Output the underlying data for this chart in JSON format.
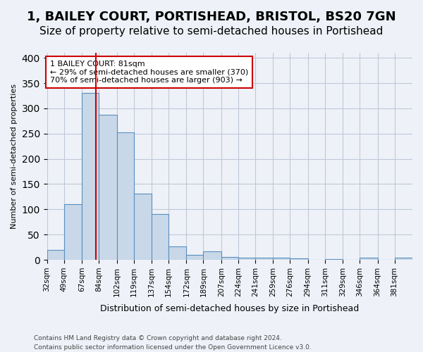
{
  "title": "1, BAILEY COURT, PORTISHEAD, BRISTOL, BS20 7GN",
  "subtitle": "Size of property relative to semi-detached houses in Portishead",
  "xlabel": "Distribution of semi-detached houses by size in Portishead",
  "ylabel": "Number of semi-detached properties",
  "footnote1": "Contains HM Land Registry data © Crown copyright and database right 2024.",
  "footnote2": "Contains public sector information licensed under the Open Government Licence v3.0.",
  "bar_edges": [
    32,
    49,
    67,
    84,
    102,
    119,
    137,
    154,
    172,
    189,
    207,
    224,
    241,
    259,
    276,
    294,
    311,
    329,
    346,
    364,
    381,
    399
  ],
  "bar_heights": [
    20,
    110,
    330,
    287,
    252,
    131,
    91,
    27,
    10,
    17,
    6,
    4,
    4,
    4,
    3,
    0,
    1,
    0,
    4,
    0,
    4
  ],
  "bar_color": "#c8d8e8",
  "bar_edge_color": "#5a8fc0",
  "property_size": 81,
  "marker_color": "#cc0000",
  "annotation_text": "1 BAILEY COURT: 81sqm\n← 29% of semi-detached houses are smaller (370)\n70% of semi-detached houses are larger (903) →",
  "annotation_box_color": "#ffffff",
  "annotation_box_edge": "#cc0000",
  "ylim": [
    0,
    410
  ],
  "grid_color": "#c0c8d8",
  "bg_color": "#eef2f8",
  "title_fontsize": 13,
  "subtitle_fontsize": 11
}
